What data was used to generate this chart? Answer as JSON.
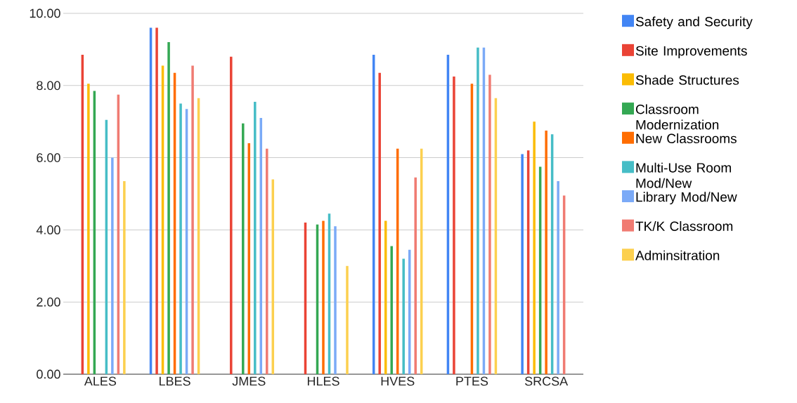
{
  "chart_data": {
    "type": "bar",
    "categories": [
      "ALES",
      "LBES",
      "JMES",
      "HLES",
      "HVES",
      "PTES",
      "SRCSA"
    ],
    "series": [
      {
        "name": "Safety and Security",
        "color": "#4285f4",
        "values": [
          null,
          9.6,
          null,
          null,
          8.85,
          8.85,
          6.1
        ]
      },
      {
        "name": "Site Improvements",
        "color": "#ea4335",
        "values": [
          8.85,
          9.6,
          8.8,
          4.2,
          8.35,
          8.25,
          6.2
        ]
      },
      {
        "name": "Shade Structures",
        "color": "#fbbc04",
        "values": [
          8.05,
          8.55,
          null,
          null,
          4.25,
          null,
          7.0
        ]
      },
      {
        "name": "Classroom Modernization",
        "color": "#34a853",
        "values": [
          7.85,
          9.2,
          6.95,
          4.15,
          3.55,
          null,
          5.75
        ]
      },
      {
        "name": "New Classrooms",
        "color": "#ff6d01",
        "values": [
          null,
          8.35,
          6.4,
          4.25,
          6.25,
          8.05,
          6.75
        ]
      },
      {
        "name": "Multi-Use Room Mod/New",
        "color": "#46bdc6",
        "values": [
          7.05,
          7.5,
          7.55,
          4.45,
          3.2,
          9.05,
          6.65
        ]
      },
      {
        "name": "Library Mod/New",
        "color": "#7baaf7",
        "values": [
          6.0,
          7.35,
          7.1,
          4.1,
          3.45,
          9.05,
          5.35
        ]
      },
      {
        "name": "TK/K Classroom",
        "color": "#f07b72",
        "values": [
          7.75,
          8.55,
          6.25,
          null,
          5.45,
          8.3,
          4.95
        ]
      },
      {
        "name": "Adminsitration",
        "color": "#fcd04f",
        "values": [
          5.35,
          7.65,
          5.4,
          3.0,
          6.25,
          7.65,
          null
        ]
      }
    ],
    "ylim": [
      0,
      10
    ],
    "yticks": [
      {
        "value": 0,
        "label": "0.00"
      },
      {
        "value": 2,
        "label": "2.00"
      },
      {
        "value": 4,
        "label": "4.00"
      },
      {
        "value": 6,
        "label": "6.00"
      },
      {
        "value": 8,
        "label": "8.00"
      },
      {
        "value": 10,
        "label": "10.00"
      }
    ],
    "grid": "y",
    "legend": "right"
  }
}
